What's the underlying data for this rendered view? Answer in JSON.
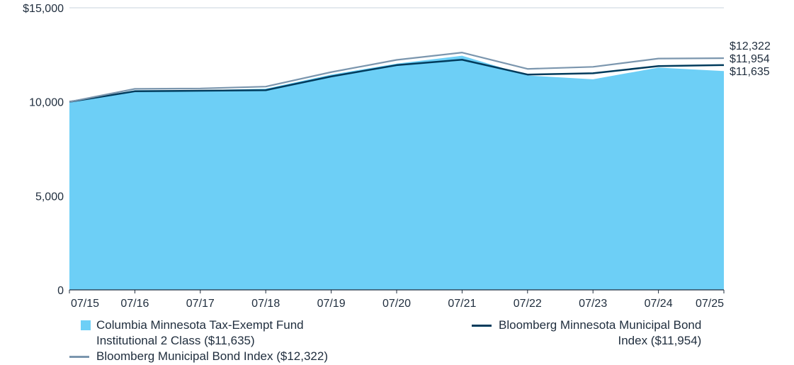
{
  "chart_data": {
    "type": "area",
    "title": "",
    "xlabel": "",
    "ylabel": "",
    "x": [
      "07/15",
      "07/16",
      "07/17",
      "07/18",
      "07/19",
      "07/20",
      "07/21",
      "07/22",
      "07/23",
      "07/24",
      "07/25"
    ],
    "y_ticks": [
      "$15,000",
      "10,000",
      "5,000",
      "0"
    ],
    "y_tick_values": [
      15000,
      10000,
      5000,
      0
    ],
    "ylim": [
      0,
      15000
    ],
    "grid": true,
    "series": [
      {
        "name": "Columbia Minnesota Tax-Exempt Fund Institutional 2 Class ($11,635)",
        "kind": "area",
        "color": "#6dcff6",
        "end_label": "$11,635",
        "values": [
          10000,
          10620,
          10620,
          10700,
          11450,
          12030,
          12450,
          11400,
          11200,
          11820,
          11635
        ]
      },
      {
        "name": "Bloomberg Minnesota Municipal Bond Index ($11,954)",
        "kind": "line",
        "color": "#003b5c",
        "end_label": "$11,954",
        "values": [
          10000,
          10560,
          10590,
          10620,
          11350,
          11950,
          12240,
          11450,
          11520,
          11900,
          11954
        ]
      },
      {
        "name": "Bloomberg Municipal Bond Index ($12,322)",
        "kind": "line",
        "color": "#7b96ae",
        "end_label": "$12,322",
        "values": [
          10000,
          10690,
          10710,
          10810,
          11580,
          12230,
          12620,
          11750,
          11860,
          12300,
          12322
        ]
      }
    ],
    "legend": {
      "position": "bottom",
      "items": [
        {
          "label_line1": "Columbia Minnesota Tax-Exempt Fund",
          "label_line2": "Institutional 2 Class ($11,635)",
          "marker": "box",
          "color": "#6dcff6"
        },
        {
          "label_line1": "Bloomberg Minnesota Municipal Bond",
          "label_line2": "Index ($11,954)",
          "marker": "line",
          "color": "#003b5c"
        },
        {
          "label_line1": "Bloomberg Municipal Bond Index ($12,322)",
          "marker": "line",
          "color": "#7b96ae"
        }
      ]
    }
  }
}
